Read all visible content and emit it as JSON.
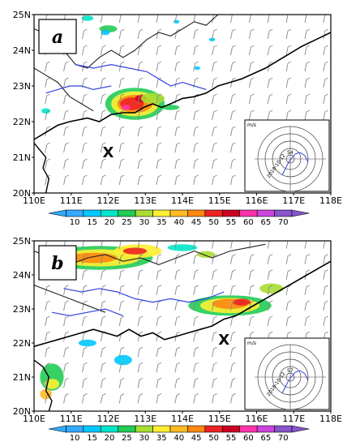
{
  "panels": [
    {
      "label": "a",
      "lat_ticks": [
        "25N",
        "24N",
        "23N",
        "22N",
        "21N",
        "20N"
      ],
      "lon_ticks": [
        "110E",
        "111E",
        "112E",
        "113E",
        "114E",
        "115E",
        "116E",
        "117E",
        "118E"
      ],
      "marker": "X",
      "inset": {
        "units": "m/s",
        "speed_label": "54",
        "date_label": "2018-10-12"
      },
      "colorbar": [
        "10",
        "15",
        "20",
        "25",
        "30",
        "35",
        "40",
        "45",
        "50",
        "55",
        "60",
        "65",
        "70"
      ]
    },
    {
      "label": "b",
      "lat_ticks": [
        "25N",
        "24N",
        "23N",
        "22N",
        "21N",
        "20N"
      ],
      "lon_ticks": [
        "110E",
        "111E",
        "112E",
        "113E",
        "114E",
        "115E",
        "116E",
        "117E",
        "118E"
      ],
      "marker": "X",
      "inset": {
        "units": "m/s",
        "speed_label": "57",
        "date_label": "2018-10-12"
      },
      "colorbar": [
        "10",
        "15",
        "20",
        "25",
        "30",
        "35",
        "40",
        "45",
        "50",
        "55",
        "60",
        "65",
        "70"
      ]
    }
  ],
  "colors": {
    "scale": [
      "#33aaff",
      "#00c8ff",
      "#00e6c8",
      "#22cc55",
      "#aadd33",
      "#ffee33",
      "#ffbb22",
      "#ff8811",
      "#ee2222",
      "#cc0022",
      "#ff33aa",
      "#cc44dd",
      "#8855cc"
    ],
    "river": "#3344dd",
    "coast": "#000000",
    "barb": "#888888"
  }
}
